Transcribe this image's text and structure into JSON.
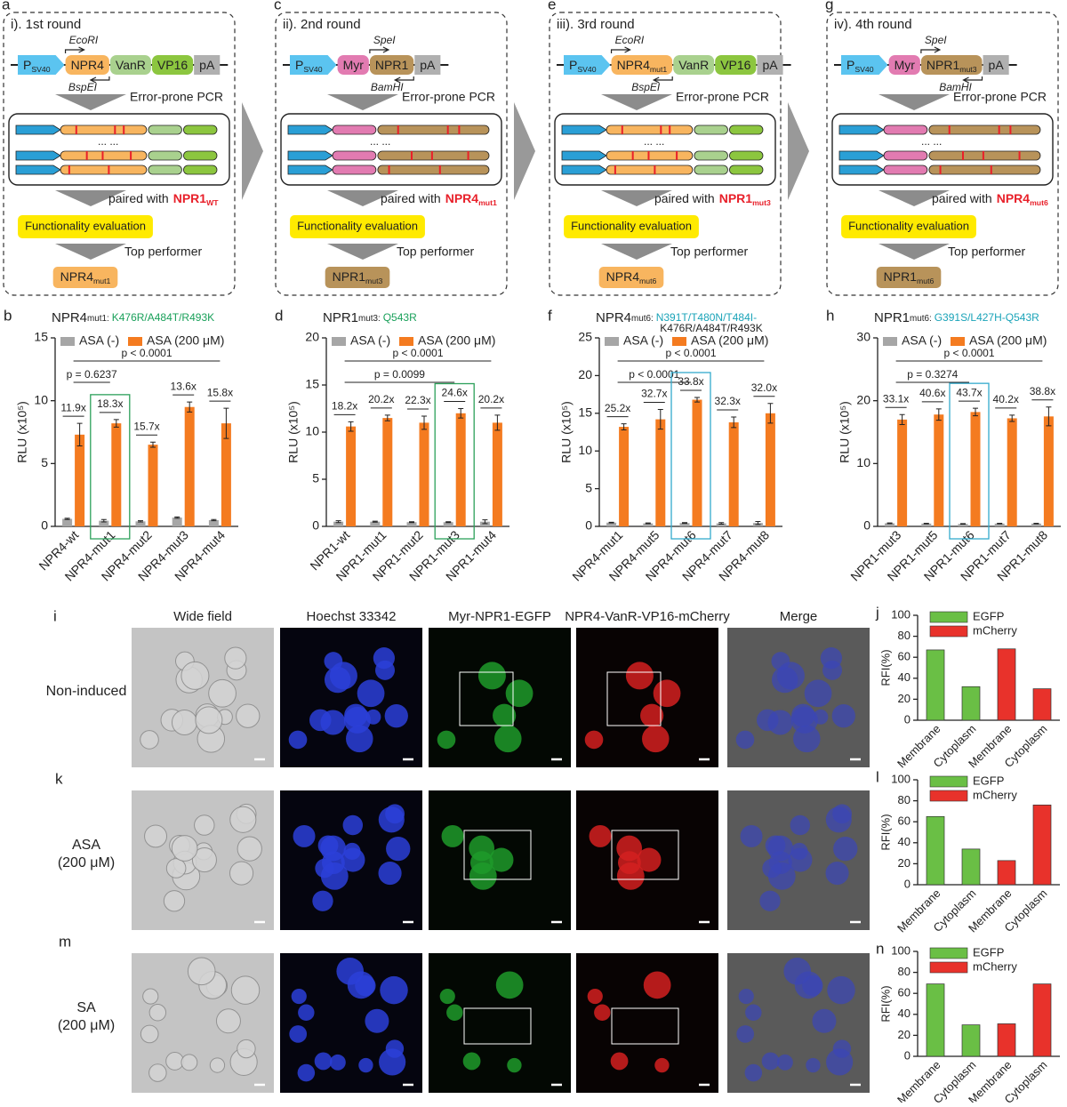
{
  "diagrams": [
    {
      "panel": "a",
      "title": "i). 1st round",
      "construct": [
        {
          "text": "P",
          "sub": "SV40",
          "color": "#5bc4f0"
        },
        {
          "text": "NPR4",
          "color": "#f8b55f"
        },
        {
          "text": "VanR",
          "color": "#a9d18e"
        },
        {
          "text": "VP16",
          "color": "#8cc63f"
        },
        {
          "text": "pA",
          "color": "#b0b0b0"
        }
      ],
      "target": 1,
      "forward_site": "EcoRI",
      "reverse_site": "BspEI",
      "step": "Error-prone PCR",
      "library_ellipsis": "... ...",
      "paired_with": "paired with",
      "partner": {
        "text": "NPR1",
        "sub": "WT"
      },
      "evaluation": "Functionality evaluation",
      "selection": "Top performer",
      "result": {
        "text": "NPR4",
        "sub": "mut1",
        "color": "#f8b55f"
      }
    },
    {
      "panel": "c",
      "title": "ii). 2nd round",
      "construct": [
        {
          "text": "P",
          "sub": "SV40",
          "color": "#5bc4f0"
        },
        {
          "text": "Myr",
          "color": "#e27bb1"
        },
        {
          "text": "NPR1",
          "color": "#b8935a"
        },
        {
          "text": "pA",
          "color": "#b0b0b0"
        }
      ],
      "target": 2,
      "forward_site": "SpeI",
      "reverse_site": "BamHI",
      "step": "Error-prone PCR",
      "library_ellipsis": "... ...",
      "paired_with": "paired with",
      "partner": {
        "text": "NPR4",
        "sub": "mut1"
      },
      "evaluation": "Functionality evaluation",
      "selection": "Top performer",
      "result": {
        "text": "NPR1",
        "sub": "mut3",
        "color": "#b8935a"
      }
    },
    {
      "panel": "e",
      "title": "iii). 3rd round",
      "construct": [
        {
          "text": "P",
          "sub": "SV40",
          "color": "#5bc4f0"
        },
        {
          "text": "NPR4",
          "sub": "mut1",
          "color": "#f8b55f"
        },
        {
          "text": "VanR",
          "color": "#a9d18e"
        },
        {
          "text": "VP16",
          "color": "#8cc63f"
        },
        {
          "text": "pA",
          "color": "#b0b0b0"
        }
      ],
      "target": 1,
      "forward_site": "EcoRI",
      "reverse_site": "BspEI",
      "step": "Error-prone PCR",
      "library_ellipsis": "... ...",
      "paired_with": "paired with",
      "partner": {
        "text": "NPR1",
        "sub": "mut3"
      },
      "evaluation": "Functionality evaluation",
      "selection": "Top performer",
      "result": {
        "text": "NPR4",
        "sub": "mut6",
        "color": "#f8b55f"
      }
    },
    {
      "panel": "g",
      "title": "iv). 4th round",
      "construct": [
        {
          "text": "P",
          "sub": "SV40",
          "color": "#5bc4f0"
        },
        {
          "text": "Myr",
          "color": "#e27bb1"
        },
        {
          "text": "NPR1",
          "sub": "mut3",
          "color": "#b8935a"
        },
        {
          "text": "pA",
          "color": "#b0b0b0"
        }
      ],
      "target": 2,
      "forward_site": "SpeI",
      "reverse_site": "BamHI",
      "step": "Error-prone PCR",
      "library_ellipsis": "... ...",
      "paired_with": "paired with",
      "partner": {
        "text": "NPR4",
        "sub": "mut6"
      },
      "evaluation": "Functionality evaluation",
      "selection": "Top performer",
      "result": {
        "text": "NPR1",
        "sub": "mut6",
        "color": "#b8935a"
      }
    }
  ],
  "chart_data": [
    {
      "type": "bar",
      "panel": "b",
      "title": "NPR4",
      "title_sub": "mut1:",
      "subtitle": [
        "K476R/A484T/R493K"
      ],
      "subtitle_color": "#19a05a",
      "ylabel": "RLU (x10⁵)",
      "categories": [
        "NPR4-wt",
        "NPR4-mut1",
        "NPR4-mut2",
        "NPR4-mut3",
        "NPR4-mut4"
      ],
      "series": [
        {
          "name": "ASA (-)",
          "color": "#a6a6a6",
          "values": [
            0.6,
            0.45,
            0.4,
            0.7,
            0.5
          ],
          "errors": [
            0.05,
            0.1,
            0.05,
            0.05,
            0.05
          ]
        },
        {
          "name": "ASA (200 μM)",
          "color": "#f47b20",
          "values": [
            7.3,
            8.2,
            6.5,
            9.5,
            8.2
          ],
          "errors": [
            0.9,
            0.3,
            0.2,
            0.4,
            1.2
          ]
        }
      ],
      "fold_labels": [
        "11.9x",
        "18.3x",
        "15.7x",
        "13.6x",
        "15.8x"
      ],
      "comparisons": [
        {
          "from": 0,
          "to": 1,
          "label": "p = 0.6237"
        },
        {
          "from": 0,
          "to": 4,
          "label": "p < 0.0001"
        }
      ],
      "highlight": {
        "index": 1,
        "color": "#2ca05a"
      },
      "ylim": [
        0,
        15
      ],
      "yticks": [
        0,
        5,
        10,
        15
      ],
      "legend": "upper left"
    },
    {
      "type": "bar",
      "panel": "d",
      "title": "NPR1",
      "title_sub": "mut3:",
      "subtitle": [
        "Q543R"
      ],
      "subtitle_color": "#19a05a",
      "ylabel": "RLU (x10⁵)",
      "categories": [
        "NPR1-wt",
        "NPR1-mut1",
        "NPR1-mut2",
        "NPR1-mut3",
        "NPR1-mut4"
      ],
      "series": [
        {
          "name": "ASA (-)",
          "color": "#a6a6a6",
          "values": [
            0.5,
            0.5,
            0.45,
            0.45,
            0.5
          ],
          "errors": [
            0.1,
            0.05,
            0.05,
            0.05,
            0.2
          ]
        },
        {
          "name": "ASA (200 μM)",
          "color": "#f47b20",
          "values": [
            10.6,
            11.5,
            11.0,
            12.0,
            11.0
          ],
          "errors": [
            0.5,
            0.3,
            0.7,
            0.5,
            0.8
          ]
        }
      ],
      "fold_labels": [
        "18.2x",
        "20.2x",
        "22.3x",
        "24.6x",
        "20.2x"
      ],
      "comparisons": [
        {
          "from": 0,
          "to": 3,
          "label": "p = 0.0099"
        },
        {
          "from": 0,
          "to": 4,
          "label": "p < 0.0001"
        }
      ],
      "highlight": {
        "index": 3,
        "color": "#2ca05a"
      },
      "ylim": [
        0,
        20
      ],
      "yticks": [
        0,
        5,
        10,
        15,
        20
      ],
      "legend": "upper left"
    },
    {
      "type": "bar",
      "panel": "f",
      "title": "NPR4",
      "title_sub": "mut6:",
      "subtitle": [
        "N391T/T480N/T484I-",
        "K476R/A484T/R493K"
      ],
      "subtitle_color": "#1aa3b8",
      "ylabel": "RLU (x10⁵)",
      "categories": [
        "NPR4-mut1",
        "NPR4-mut5",
        "NPR4-mut6",
        "NPR4-mut7",
        "NPR4-mut8"
      ],
      "series": [
        {
          "name": "ASA (-)",
          "color": "#a6a6a6",
          "values": [
            0.5,
            0.4,
            0.45,
            0.4,
            0.45
          ],
          "errors": [
            0.05,
            0.05,
            0.05,
            0.1,
            0.2
          ]
        },
        {
          "name": "ASA (200 μM)",
          "color": "#f47b20",
          "values": [
            13.2,
            14.2,
            16.8,
            13.8,
            15.0
          ],
          "errors": [
            0.4,
            1.3,
            0.3,
            0.7,
            1.3
          ]
        }
      ],
      "fold_labels": [
        "25.2x",
        "32.7x",
        "33.8x",
        "32.3x",
        "32.0x"
      ],
      "comparisons": [
        {
          "from": 0,
          "to": 2,
          "label": "p < 0.0001"
        },
        {
          "from": 0,
          "to": 4,
          "label": "p < 0.0001"
        }
      ],
      "highlight": {
        "index": 2,
        "color": "#33aacc"
      },
      "ylim": [
        0,
        25
      ],
      "yticks": [
        0,
        5,
        10,
        15,
        20,
        25
      ],
      "legend": "upper left"
    },
    {
      "type": "bar",
      "panel": "h",
      "title": "NPR1",
      "title_sub": "mut6:",
      "subtitle": [
        "G391S/L427H-Q543R"
      ],
      "subtitle_color": "#1aa3b8",
      "ylabel": "RLU (x10⁵)",
      "categories": [
        "NPR1-mut3",
        "NPR1-mut5",
        "NPR1-mut6",
        "NPR1-mut7",
        "NPR1-mut8"
      ],
      "series": [
        {
          "name": "ASA (-)",
          "color": "#a6a6a6",
          "values": [
            0.5,
            0.45,
            0.4,
            0.45,
            0.45
          ],
          "errors": [
            0.05,
            0.05,
            0.05,
            0.05,
            0.05
          ]
        },
        {
          "name": "ASA (200 μM)",
          "color": "#f47b20",
          "values": [
            17.0,
            17.8,
            18.2,
            17.2,
            17.5
          ],
          "errors": [
            0.8,
            0.9,
            0.6,
            0.5,
            1.5
          ]
        }
      ],
      "fold_labels": [
        "33.1x",
        "40.6x",
        "43.7x",
        "40.2x",
        "38.8x"
      ],
      "comparisons": [
        {
          "from": 0,
          "to": 2,
          "label": "p = 0.3274"
        },
        {
          "from": 0,
          "to": 4,
          "label": "p < 0.0001"
        }
      ],
      "highlight": {
        "index": 2,
        "color": "#33aacc"
      },
      "ylim": [
        0,
        30
      ],
      "yticks": [
        0,
        10,
        20,
        30
      ],
      "legend": "upper left"
    },
    {
      "type": "bar",
      "panel": "j",
      "ylabel": "RFI(%)",
      "categories": [
        "Membrane",
        "Cytoplasm",
        "Membrane",
        "Cytoplasm"
      ],
      "series": [
        {
          "name": "EGFP",
          "color": "#6abf45",
          "values": [
            67,
            32,
            null,
            null
          ]
        },
        {
          "name": "mCherry",
          "color": "#e8322b",
          "values": [
            null,
            null,
            68,
            30
          ]
        }
      ],
      "ylim": [
        0,
        100
      ],
      "yticks": [
        0,
        20,
        40,
        60,
        80,
        100
      ],
      "legend": "upper left"
    },
    {
      "type": "bar",
      "panel": "l",
      "ylabel": "RFI(%)",
      "categories": [
        "Membrane",
        "Cytoplasm",
        "Membrane",
        "Cytoplasm"
      ],
      "series": [
        {
          "name": "EGFP",
          "color": "#6abf45",
          "values": [
            65,
            34,
            null,
            null
          ]
        },
        {
          "name": "mCherry",
          "color": "#e8322b",
          "values": [
            null,
            null,
            23,
            76
          ]
        }
      ],
      "ylim": [
        0,
        100
      ],
      "yticks": [
        0,
        20,
        40,
        60,
        80,
        100
      ],
      "legend": "upper left"
    },
    {
      "type": "bar",
      "panel": "n",
      "ylabel": "RFI(%)",
      "categories": [
        "Membrane",
        "Cytoplasm",
        "Membrane",
        "Cytoplasm"
      ],
      "series": [
        {
          "name": "EGFP",
          "color": "#6abf45",
          "values": [
            69,
            30,
            null,
            null
          ]
        },
        {
          "name": "mCherry",
          "color": "#e8322b",
          "values": [
            null,
            null,
            31,
            69
          ]
        }
      ],
      "ylim": [
        0,
        100
      ],
      "yticks": [
        0,
        20,
        40,
        60,
        80,
        100
      ],
      "legend": "upper left"
    }
  ],
  "microscopy": {
    "columns": [
      "Wide field",
      "Hoechst 33342",
      "Myr-NPR1-EGFP",
      "NPR4-VanR-VP16-mCherry",
      "Merge"
    ],
    "rows": [
      {
        "panel": "i",
        "label": [
          "Non-induced"
        ]
      },
      {
        "panel": "k",
        "label": [
          "ASA",
          "(200 μM)"
        ]
      },
      {
        "panel": "m",
        "label": [
          "SA",
          "(200 μM)"
        ]
      }
    ]
  }
}
